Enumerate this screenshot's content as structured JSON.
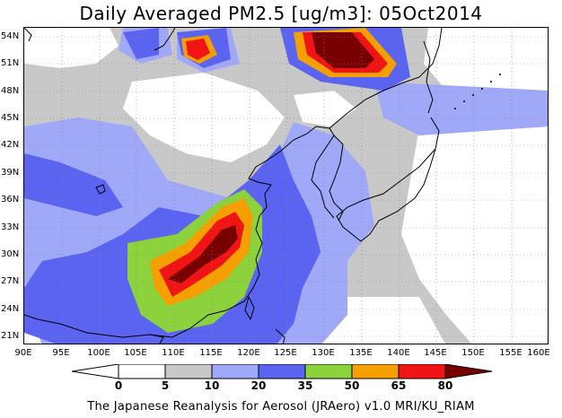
{
  "title": "Daily Averaged PM2.5 [ug/m3]: 05Oct2014",
  "credit": "The Japanese Reanalysis for Aerosol (JRAero) v1.0 MRI/KU_RIAM",
  "lat_labels": [
    "54N",
    "51N",
    "48N",
    "45N",
    "42N",
    "39N",
    "36N",
    "33N",
    "30N",
    "27N",
    "24N",
    "21N"
  ],
  "lon_labels": [
    "90E",
    "95E",
    "100E",
    "105E",
    "110E",
    "115E",
    "120E",
    "125E",
    "130E",
    "135E",
    "140E",
    "145E",
    "150E",
    "155E",
    "160E"
  ],
  "colorbar": {
    "levels": [
      "0",
      "5",
      "10",
      "20",
      "35",
      "50",
      "65",
      "80"
    ],
    "colors": [
      "#ffffff",
      "#ffffff",
      "#c8c8c8",
      "#a0a8f8",
      "#5a64f0",
      "#8cd23c",
      "#f5a000",
      "#f01414",
      "#780000"
    ]
  },
  "colors": {
    "bg": "#ffffff",
    "c5": "#c8c8c8",
    "c10": "#a0a8f8",
    "c20": "#5a64f0",
    "c35": "#8cd23c",
    "c50": "#f5a000",
    "c65": "#f01414",
    "c80": "#780000"
  }
}
